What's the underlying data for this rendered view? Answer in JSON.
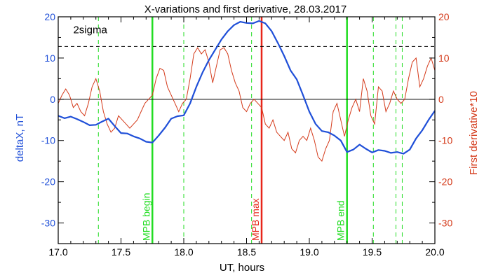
{
  "chart_data": {
    "type": "line",
    "title": "X-variations and first derivative, 28.03.2017",
    "xlabel": "UT, hours",
    "ylabel_left": "deltaX, nT",
    "ylabel_right": "First derivative*10",
    "xlim": [
      17.0,
      20.0
    ],
    "ylim": [
      -35,
      20
    ],
    "x_ticks": [
      17.0,
      17.5,
      18.0,
      18.5,
      19.0,
      19.5,
      20.0
    ],
    "x_tick_labels": [
      "17.0",
      "17.5",
      "18.0",
      "18.5",
      "19.0",
      "19.5",
      "20.0"
    ],
    "y_ticks": [
      20,
      10,
      0,
      -10,
      -20,
      -30
    ],
    "y_tick_labels": [
      "20",
      "10",
      "0",
      "-10",
      "-20",
      "-30"
    ],
    "threshold": {
      "label": "2sigma",
      "value": 12.8,
      "style": "dashed",
      "color": "#000000"
    },
    "zero_line": 0,
    "colors": {
      "deltaX": "#1f4fd8",
      "derivative": "#d43a1a",
      "markers": "#22dd22",
      "max_marker": "#e8261a"
    },
    "vertical_markers": [
      {
        "x": 17.75,
        "label": "MPB begin",
        "color": "#22dd22"
      },
      {
        "x": 18.62,
        "label": "MPB max",
        "color": "#e8261a"
      },
      {
        "x": 19.3,
        "label": "MPB end",
        "color": "#22dd22"
      }
    ],
    "dashed_markers": [
      17.32,
      18.0,
      18.54,
      19.51,
      19.69,
      19.74
    ],
    "series": [
      {
        "x": [
          17.0,
          17.05,
          17.1,
          17.15,
          17.2,
          17.25,
          17.3,
          17.35,
          17.4,
          17.45,
          17.5,
          17.55,
          17.6,
          17.65,
          17.7,
          17.75,
          17.8,
          17.85,
          17.9,
          17.95,
          18.0,
          18.05,
          18.1,
          18.15,
          18.2,
          18.25,
          18.3,
          18.35,
          18.4,
          18.45,
          18.5,
          18.55,
          18.6,
          18.65,
          18.7,
          18.75,
          18.8,
          18.85,
          18.9,
          18.95,
          19.0,
          19.05,
          19.1,
          19.15,
          19.2,
          19.25,
          19.3,
          19.35,
          19.4,
          19.45,
          19.5,
          19.55,
          19.6,
          19.65,
          19.7,
          19.75,
          19.8,
          19.85,
          19.9,
          19.95,
          20.0
        ],
        "values": [
          -4.0,
          -4.6,
          -4.2,
          -4.8,
          -5.5,
          -6.3,
          -6.2,
          -5.4,
          -4.7,
          -6.5,
          -8.2,
          -8.3,
          -9.0,
          -9.5,
          -10.3,
          -10.5,
          -8.8,
          -6.9,
          -4.7,
          -4.1,
          -3.9,
          -1.0,
          3.0,
          6.5,
          9.5,
          12.0,
          14.5,
          16.5,
          18.0,
          18.8,
          18.5,
          18.4,
          19.0,
          18.4,
          16.5,
          13.6,
          10.5,
          7.0,
          4.8,
          1.0,
          -3.0,
          -6.0,
          -7.7,
          -8.0,
          -8.8,
          -10.0,
          -12.8,
          -12.2,
          -11.0,
          -12.0,
          -12.9,
          -12.3,
          -12.5,
          -13.0,
          -12.8,
          -13.2,
          -12.2,
          -9.5,
          -7.5,
          -5.0,
          -2.8
        ]
      },
      {
        "x": [
          17.0,
          17.03,
          17.06,
          17.09,
          17.12,
          17.15,
          17.18,
          17.21,
          17.24,
          17.27,
          17.3,
          17.33,
          17.36,
          17.39,
          17.42,
          17.45,
          17.48,
          17.51,
          17.54,
          17.57,
          17.6,
          17.63,
          17.66,
          17.69,
          17.72,
          17.75,
          17.78,
          17.81,
          17.84,
          17.87,
          17.9,
          17.93,
          17.96,
          17.99,
          18.02,
          18.05,
          18.08,
          18.11,
          18.14,
          18.17,
          18.2,
          18.23,
          18.26,
          18.29,
          18.32,
          18.35,
          18.38,
          18.41,
          18.44,
          18.47,
          18.5,
          18.53,
          18.56,
          18.59,
          18.62,
          18.65,
          18.68,
          18.71,
          18.74,
          18.77,
          18.8,
          18.83,
          18.86,
          18.89,
          18.92,
          18.95,
          18.98,
          19.01,
          19.04,
          19.07,
          19.1,
          19.13,
          19.16,
          19.19,
          19.22,
          19.25,
          19.28,
          19.31,
          19.34,
          19.37,
          19.4,
          19.43,
          19.46,
          19.49,
          19.52,
          19.55,
          19.58,
          19.61,
          19.64,
          19.67,
          19.7,
          19.73,
          19.76,
          19.79,
          19.82,
          19.85,
          19.88,
          19.91,
          19.94,
          19.97,
          20.0
        ],
        "values": [
          -1,
          1,
          2.5,
          1,
          -2,
          -1,
          -3,
          -4,
          -1,
          3,
          5,
          2,
          -3,
          -6,
          -8,
          -7,
          -4,
          -5,
          -6,
          -7,
          -6,
          -5,
          -3,
          -1,
          0,
          1,
          5,
          7.5,
          7,
          3,
          1,
          -1,
          -3,
          -1,
          0,
          5,
          11,
          12.5,
          11,
          12,
          9,
          4,
          8,
          12,
          12.5,
          11,
          7,
          4,
          2,
          -2,
          -3,
          -1,
          0,
          -1,
          -2,
          -6,
          -7,
          -5,
          -8,
          -9,
          -10,
          -8,
          -12,
          -13,
          -10,
          -9,
          -10,
          -7,
          -10,
          -14,
          -15,
          -12,
          -10,
          -3,
          -1,
          -5,
          -9,
          -5,
          -2,
          0,
          -3,
          5,
          2,
          -4,
          -6,
          3,
          2,
          -3,
          -1,
          2,
          0,
          -1,
          0,
          5,
          9,
          10,
          3,
          5,
          8,
          10,
          7
        ]
      }
    ]
  }
}
